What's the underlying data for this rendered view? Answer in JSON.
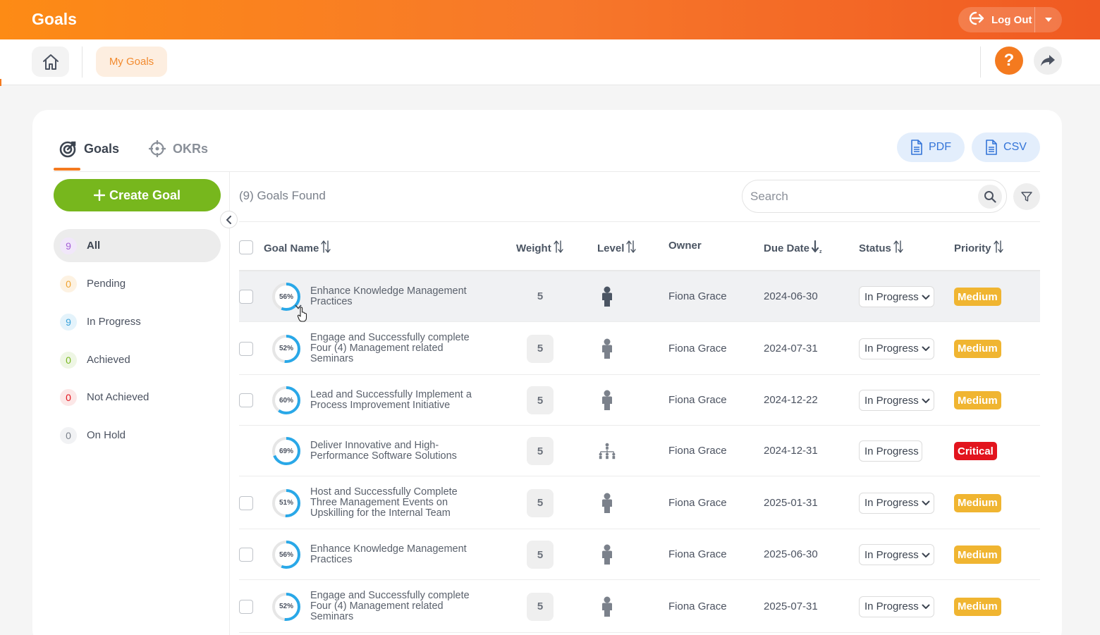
{
  "app": {
    "title": "Goals",
    "logout_label": "Log Out"
  },
  "subbar": {
    "my_goals_label": "My Goals",
    "help_label": "?"
  },
  "tabs": [
    {
      "label": "Goals",
      "icon": "target-icon",
      "active": true
    },
    {
      "label": "OKRs",
      "icon": "crosshair-icon",
      "active": false
    }
  ],
  "exports": {
    "pdf_label": "PDF",
    "csv_label": "CSV"
  },
  "sidebar": {
    "create_label": "Create Goal",
    "filters": [
      {
        "count": "9",
        "label": "All",
        "color": "#a560d6",
        "bg": "#f1e7fa"
      },
      {
        "count": "0",
        "label": "Pending",
        "color": "#f0a32f",
        "bg": "#fdf2e2"
      },
      {
        "count": "9",
        "label": "In Progress",
        "color": "#3aa3db",
        "bg": "#e4f3fb"
      },
      {
        "count": "0",
        "label": "Achieved",
        "color": "#77b71d",
        "bg": "#eef6e4"
      },
      {
        "count": "0",
        "label": "Not Achieved",
        "color": "#e2141d",
        "bg": "#fce7e7"
      },
      {
        "count": "0",
        "label": "On Hold",
        "color": "#7b818b",
        "bg": "#f1f2f4"
      }
    ]
  },
  "content": {
    "found_label": "(9) Goals Found",
    "search_placeholder": "Search"
  },
  "table": {
    "headers": {
      "goal_name": "Goal Name",
      "weight": "Weight",
      "level": "Level",
      "owner": "Owner",
      "due_date": "Due Date",
      "status": "Status",
      "priority": "Priority"
    },
    "rows": [
      {
        "progress_label": "56%",
        "progress": 56,
        "name": "Enhance Knowledge Management Practices",
        "weight": "5",
        "level": "individual",
        "owner": "Fiona Grace",
        "due": "2024-06-30",
        "status": "In Progress",
        "priority": "Medium"
      },
      {
        "progress_label": "52%",
        "progress": 52,
        "name": "Engage and Successfully complete Four (4) Management related Seminars",
        "weight": "5",
        "level": "individual",
        "owner": "Fiona Grace",
        "due": "2024-07-31",
        "status": "In Progress",
        "priority": "Medium"
      },
      {
        "progress_label": "60%",
        "progress": 60,
        "name": "Lead and Successfully Implement a Process Improvement Initiative",
        "weight": "5",
        "level": "individual",
        "owner": "Fiona Grace",
        "due": "2024-12-22",
        "status": "In Progress",
        "priority": "Medium"
      },
      {
        "progress_label": "69%",
        "progress": 69,
        "name": "Deliver Innovative and High-Performance Software Solutions",
        "weight": "5",
        "level": "organization",
        "owner": "Fiona Grace",
        "due": "2024-12-31",
        "status": "In Progress",
        "priority": "Critical"
      },
      {
        "progress_label": "51%",
        "progress": 51,
        "name": "Host and Successfully Complete Three Management Events on Upskilling for the Internal Team",
        "weight": "5",
        "level": "individual",
        "owner": "Fiona Grace",
        "due": "2025-01-31",
        "status": "In Progress",
        "priority": "Medium"
      },
      {
        "progress_label": "56%",
        "progress": 56,
        "name": "Enhance Knowledge Management Practices",
        "weight": "5",
        "level": "individual",
        "owner": "Fiona Grace",
        "due": "2025-06-30",
        "status": "In Progress",
        "priority": "Medium"
      },
      {
        "progress_label": "52%",
        "progress": 52,
        "name": "Engage and Successfully complete Four (4) Management related Seminars",
        "weight": "5",
        "level": "individual",
        "owner": "Fiona Grace",
        "due": "2025-07-31",
        "status": "In Progress",
        "priority": "Medium"
      }
    ]
  },
  "colors": {
    "brand_orange": "#f47a1f",
    "progress_blue": "#29a8e8",
    "create_green": "#77b71d"
  }
}
